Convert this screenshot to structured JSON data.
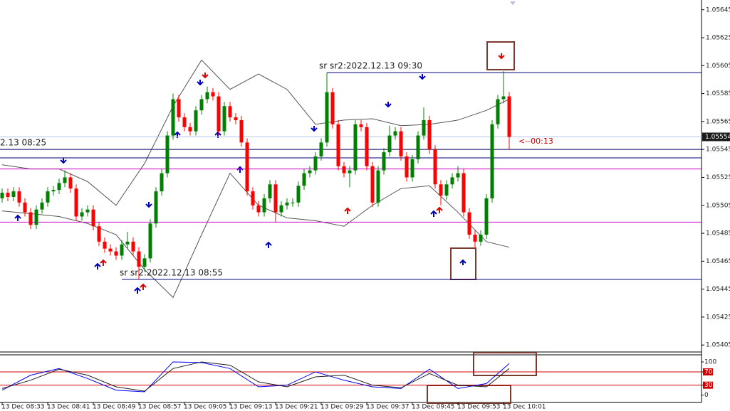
{
  "chart_data": [
    {
      "type": "candlestick",
      "ylim": [
        1.054,
        1.05652
      ],
      "yticks": [
        1.05405,
        1.05425,
        1.05445,
        1.05465,
        1.05485,
        1.05505,
        1.05525,
        1.05545,
        1.05565,
        1.05585,
        1.05605,
        1.05625,
        1.05645
      ],
      "xticks": [
        {
          "value": 0,
          "label": "13 Dec 08:33"
        },
        {
          "value": 8,
          "label": "13 Dec 08:41"
        },
        {
          "value": 16,
          "label": "13 Dec 08:49"
        },
        {
          "value": 24,
          "label": "13 Dec 08:57"
        },
        {
          "value": 32,
          "label": "13 Dec 09:05"
        },
        {
          "value": 40,
          "label": "13 Dec 09:13"
        },
        {
          "value": 48,
          "label": "13 Dec 09:21"
        },
        {
          "value": 56,
          "label": "13 Dec 09:29"
        },
        {
          "value": 64,
          "label": "13 Dec 09:37"
        },
        {
          "value": 72,
          "label": "13 Dec 09:45"
        },
        {
          "value": 80,
          "label": "13 Dec 09:53"
        },
        {
          "value": 88,
          "label": "13 Dec 10:01"
        }
      ],
      "open": [
        1.0551,
        1.05514,
        1.05511,
        1.05515,
        1.05507,
        1.055,
        1.05491,
        1.05502,
        1.05507,
        1.05515,
        1.05516,
        1.05521,
        1.05525,
        1.05517,
        1.05497,
        1.055,
        1.05502,
        1.0549,
        1.05479,
        1.05474,
        1.05472,
        1.05469,
        1.05477,
        1.05479,
        1.05472,
        1.05461,
        1.05467,
        1.05492,
        1.05515,
        1.05528,
        1.05555,
        1.05581,
        1.05568,
        1.05561,
        1.05558,
        1.05573,
        1.05581,
        1.05586,
        1.05583,
        1.05558,
        1.05576,
        1.05568,
        1.05566,
        1.0555,
        1.05515,
        1.05505,
        1.055,
        1.0551,
        1.0552,
        1.055,
        1.05505,
        1.05507,
        1.05507,
        1.05519,
        1.05528,
        1.0553,
        1.0554,
        1.0555,
        1.05586,
        1.05563,
        1.05533,
        1.05528,
        1.0553,
        1.05563,
        1.05561,
        1.05533,
        1.05507,
        1.0553,
        1.05543,
        1.05555,
        1.05558,
        1.0554,
        1.05525,
        1.05538,
        1.05555,
        1.05566,
        1.05545,
        1.0552,
        1.05512,
        1.0552,
        1.05525,
        1.05528,
        1.055,
        1.05484,
        1.05479,
        1.05484,
        1.0551,
        1.05563,
        1.05581,
        1.05583
      ],
      "high": [
        1.05517,
        1.05517,
        1.05518,
        1.05518,
        1.0551,
        1.05503,
        1.05505,
        1.0551,
        1.05518,
        1.05519,
        1.05524,
        1.0553,
        1.05528,
        1.0552,
        1.05503,
        1.05505,
        1.05505,
        1.05493,
        1.05482,
        1.05477,
        1.05475,
        1.0548,
        1.05486,
        1.05482,
        1.05475,
        1.0547,
        1.05495,
        1.05518,
        1.05531,
        1.05558,
        1.05585,
        1.05584,
        1.05571,
        1.05564,
        1.05576,
        1.05584,
        1.0559,
        1.05589,
        1.05586,
        1.05579,
        1.05579,
        1.05571,
        1.05569,
        1.05553,
        1.05518,
        1.05508,
        1.05513,
        1.05523,
        1.05523,
        1.05508,
        1.0551,
        1.0551,
        1.05522,
        1.05531,
        1.05533,
        1.05543,
        1.05553,
        1.056,
        1.05589,
        1.05566,
        1.05536,
        1.05533,
        1.05566,
        1.05566,
        1.05564,
        1.05536,
        1.05533,
        1.05546,
        1.05562,
        1.05561,
        1.05561,
        1.05543,
        1.05541,
        1.05558,
        1.05575,
        1.05569,
        1.05548,
        1.05523,
        1.05523,
        1.05528,
        1.05533,
        1.05531,
        1.05503,
        1.05487,
        1.05487,
        1.05513,
        1.05566,
        1.05584,
        1.05601,
        1.05586
      ],
      "low": [
        1.05507,
        1.05508,
        1.05508,
        1.05504,
        1.05497,
        1.05488,
        1.05488,
        1.05499,
        1.05504,
        1.05512,
        1.05513,
        1.05518,
        1.05514,
        1.05494,
        1.05494,
        1.05497,
        1.05487,
        1.05476,
        1.05471,
        1.05469,
        1.05466,
        1.05466,
        1.05474,
        1.05469,
        1.05452,
        1.05458,
        1.05464,
        1.05489,
        1.05512,
        1.05525,
        1.05552,
        1.05565,
        1.05558,
        1.05555,
        1.05555,
        1.0557,
        1.05578,
        1.0558,
        1.05555,
        1.05555,
        1.05565,
        1.05563,
        1.05547,
        1.05512,
        1.05502,
        1.05497,
        1.05497,
        1.05507,
        1.05493,
        1.05497,
        1.05502,
        1.05504,
        1.05504,
        1.05516,
        1.05525,
        1.05527,
        1.05537,
        1.05547,
        1.0556,
        1.0553,
        1.05525,
        1.05518,
        1.05527,
        1.05558,
        1.0553,
        1.05504,
        1.05504,
        1.05527,
        1.0554,
        1.05552,
        1.05537,
        1.05522,
        1.05522,
        1.05535,
        1.05552,
        1.05542,
        1.05517,
        1.05505,
        1.05509,
        1.05517,
        1.05522,
        1.05497,
        1.05481,
        1.05474,
        1.05476,
        1.05481,
        1.05507,
        1.0556,
        1.05578,
        1.05545
      ],
      "close": [
        1.05514,
        1.05511,
        1.05515,
        1.05507,
        1.055,
        1.05491,
        1.05502,
        1.05507,
        1.05515,
        1.05516,
        1.05521,
        1.05525,
        1.05517,
        1.05497,
        1.055,
        1.05502,
        1.0549,
        1.05479,
        1.05474,
        1.05472,
        1.05469,
        1.05477,
        1.05479,
        1.05472,
        1.05461,
        1.05467,
        1.05492,
        1.05515,
        1.05528,
        1.05555,
        1.05581,
        1.05568,
        1.05561,
        1.05558,
        1.05573,
        1.05581,
        1.05586,
        1.05583,
        1.05558,
        1.05576,
        1.05568,
        1.05566,
        1.0555,
        1.05515,
        1.05505,
        1.055,
        1.0551,
        1.0552,
        1.055,
        1.05505,
        1.05507,
        1.05507,
        1.05519,
        1.05528,
        1.0553,
        1.0554,
        1.0555,
        1.05586,
        1.05563,
        1.05533,
        1.05528,
        1.0553,
        1.05563,
        1.05561,
        1.05533,
        1.05507,
        1.0553,
        1.05543,
        1.05555,
        1.05558,
        1.0554,
        1.05525,
        1.05538,
        1.05555,
        1.05566,
        1.05545,
        1.0552,
        1.05512,
        1.0552,
        1.05525,
        1.05528,
        1.055,
        1.05484,
        1.05479,
        1.05484,
        1.0551,
        1.05563,
        1.05581,
        1.05583,
        1.05554
      ],
      "up_color": "#008000",
      "down_color": "#ff0000",
      "bands": {
        "color": "#555555",
        "x": [
          0,
          5,
          10,
          15,
          20,
          25,
          30,
          35,
          40,
          45,
          50,
          55,
          60,
          65,
          70,
          75,
          80,
          85,
          89
        ],
        "upper": [
          1.05534,
          1.05531,
          1.05531,
          1.05522,
          1.05505,
          1.05535,
          1.05576,
          1.05609,
          1.05588,
          1.05599,
          1.05588,
          1.05563,
          1.05566,
          1.05567,
          1.05562,
          1.05563,
          1.05566,
          1.05573,
          1.05581
        ],
        "lower": [
          1.05501,
          1.05499,
          1.05497,
          1.05492,
          1.05484,
          1.05459,
          1.05439,
          1.05484,
          1.05528,
          1.05505,
          1.05496,
          1.05494,
          1.0549,
          1.05505,
          1.05517,
          1.05519,
          1.055,
          1.05479,
          1.05475
        ]
      },
      "levels": [
        {
          "value": 1.056,
          "color": "#000080",
          "x": 57
        },
        {
          "value": 1.05545,
          "color": "#000060"
        },
        {
          "value": 1.05539,
          "color": "#000080"
        },
        {
          "value": 1.05531,
          "color": "#cc00cc"
        },
        {
          "value": 1.05493,
          "color": "#cc00cc"
        },
        {
          "value": 1.05452,
          "color": "#000080",
          "x": 21
        }
      ],
      "annotations": [
        {
          "text": "sr sr2:2022.12.13 09:30",
          "x": 56,
          "y": 1.056
        },
        {
          "text": "sr sr2:2022.12.13 08:55",
          "x": 21,
          "y": 1.05452
        },
        {
          "text": "2.13 08:25",
          "x": 0,
          "y": 1.05545
        }
      ],
      "current_price": 1.05554,
      "countdown": "<--00:13"
    },
    {
      "type": "line",
      "ylim": [
        -22,
        117
      ],
      "yticks": [
        0,
        30,
        70,
        100
      ],
      "levels": [
        70,
        30
      ],
      "level_color": "#d00000",
      "x": [
        0,
        5,
        10,
        15,
        20,
        25,
        30,
        35,
        40,
        45,
        50,
        55,
        60,
        65,
        70,
        75,
        80,
        85,
        89
      ],
      "series": [
        {
          "color": "#0000ff",
          "values": [
            15,
            60,
            80,
            50,
            15,
            10,
            100,
            98,
            80,
            25,
            30,
            70,
            45,
            25,
            20,
            78,
            20,
            35,
            95
          ]
        },
        {
          "color": "#202020",
          "values": [
            20,
            45,
            78,
            60,
            25,
            12,
            80,
            100,
            90,
            40,
            25,
            55,
            60,
            30,
            22,
            65,
            30,
            25,
            80
          ]
        }
      ]
    }
  ]
}
